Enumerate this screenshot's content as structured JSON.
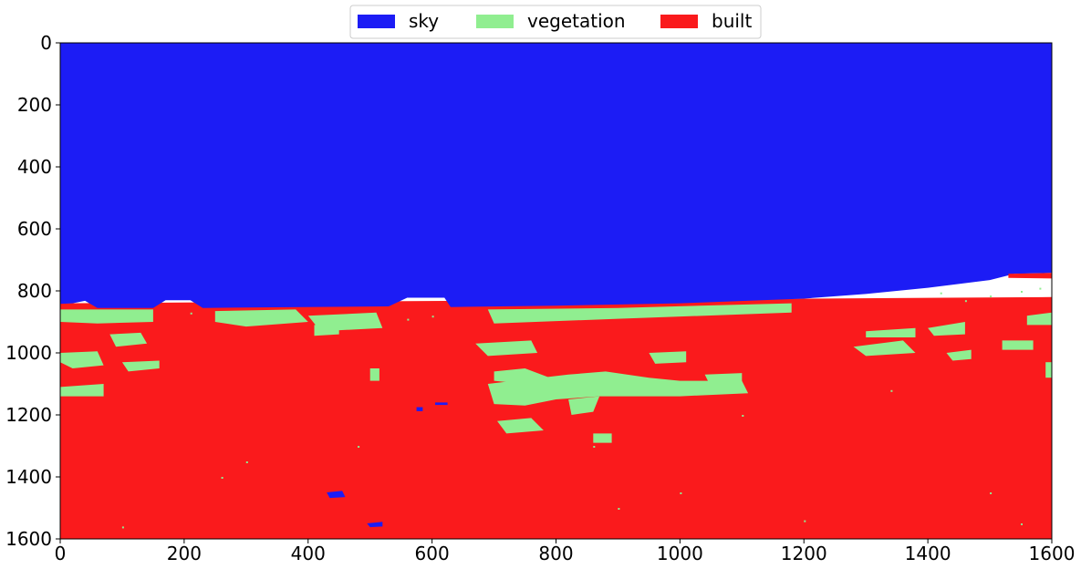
{
  "chart_data": {
    "type": "heatmap",
    "title": "",
    "xlabel": "",
    "ylabel": "",
    "xlim": [
      0,
      1600
    ],
    "ylim": [
      1600,
      0
    ],
    "y_inverted": true,
    "x_ticks": [
      0,
      200,
      400,
      600,
      800,
      1000,
      1200,
      1400,
      1600
    ],
    "y_ticks": [
      0,
      200,
      400,
      600,
      800,
      1000,
      1200,
      1400,
      1600
    ],
    "grid": false,
    "legend_position": "top-center",
    "legend_columns": 3,
    "classes": [
      {
        "name": "sky",
        "color": "#1c1cf5"
      },
      {
        "name": "vegetation",
        "color": "#90ee90"
      },
      {
        "name": "built",
        "color": "#fa1a1c"
      }
    ],
    "regions": [
      {
        "class": "built",
        "comment": "full-image background class below horizon",
        "points": [
          [
            0,
            840
          ],
          [
            1600,
            820
          ],
          [
            1600,
            1600
          ],
          [
            0,
            1600
          ]
        ]
      },
      {
        "class": "sky",
        "points": [
          [
            0,
            0
          ],
          [
            1600,
            0
          ],
          [
            1600,
            742
          ],
          [
            1540,
            745
          ],
          [
            1500,
            765
          ],
          [
            1400,
            790
          ],
          [
            1300,
            810
          ],
          [
            1200,
            825
          ],
          [
            1000,
            840
          ],
          [
            800,
            848
          ],
          [
            630,
            852
          ],
          [
            620,
            822
          ],
          [
            560,
            822
          ],
          [
            530,
            850
          ],
          [
            230,
            855
          ],
          [
            210,
            830
          ],
          [
            170,
            830
          ],
          [
            150,
            855
          ],
          [
            60,
            855
          ],
          [
            40,
            832
          ],
          [
            20,
            840
          ],
          [
            0,
            842
          ]
        ]
      },
      {
        "class": "built",
        "comment": "rooftop blob near horizon right",
        "points": [
          [
            1530,
            745
          ],
          [
            1600,
            742
          ],
          [
            1600,
            760
          ],
          [
            1530,
            758
          ]
        ]
      },
      {
        "class": "vegetation",
        "points": [
          [
            0,
            860
          ],
          [
            150,
            860
          ],
          [
            150,
            900
          ],
          [
            60,
            905
          ],
          [
            0,
            900
          ]
        ]
      },
      {
        "class": "vegetation",
        "points": [
          [
            80,
            940
          ],
          [
            130,
            935
          ],
          [
            140,
            970
          ],
          [
            90,
            980
          ]
        ]
      },
      {
        "class": "vegetation",
        "points": [
          [
            0,
            1000
          ],
          [
            60,
            995
          ],
          [
            70,
            1040
          ],
          [
            20,
            1050
          ],
          [
            0,
            1030
          ]
        ]
      },
      {
        "class": "vegetation",
        "points": [
          [
            0,
            1110
          ],
          [
            70,
            1100
          ],
          [
            70,
            1140
          ],
          [
            0,
            1140
          ]
        ]
      },
      {
        "class": "vegetation",
        "points": [
          [
            100,
            1030
          ],
          [
            160,
            1025
          ],
          [
            160,
            1050
          ],
          [
            110,
            1060
          ]
        ]
      },
      {
        "class": "vegetation",
        "points": [
          [
            250,
            865
          ],
          [
            380,
            860
          ],
          [
            400,
            900
          ],
          [
            300,
            915
          ],
          [
            250,
            900
          ]
        ]
      },
      {
        "class": "vegetation",
        "points": [
          [
            400,
            880
          ],
          [
            510,
            870
          ],
          [
            520,
            920
          ],
          [
            420,
            930
          ]
        ]
      },
      {
        "class": "vegetation",
        "points": [
          [
            410,
            910
          ],
          [
            450,
            905
          ],
          [
            450,
            940
          ],
          [
            410,
            945
          ]
        ]
      },
      {
        "class": "vegetation",
        "points": [
          [
            500,
            1050
          ],
          [
            515,
            1050
          ],
          [
            515,
            1090
          ],
          [
            500,
            1090
          ]
        ]
      },
      {
        "class": "vegetation",
        "points": [
          [
            690,
            860
          ],
          [
            900,
            855
          ],
          [
            1180,
            840
          ],
          [
            1180,
            870
          ],
          [
            900,
            890
          ],
          [
            700,
            905
          ]
        ]
      },
      {
        "class": "vegetation",
        "points": [
          [
            670,
            970
          ],
          [
            760,
            960
          ],
          [
            770,
            1000
          ],
          [
            690,
            1010
          ]
        ]
      },
      {
        "class": "vegetation",
        "points": [
          [
            700,
            1060
          ],
          [
            750,
            1050
          ],
          [
            790,
            1080
          ],
          [
            750,
            1100
          ],
          [
            700,
            1090
          ]
        ]
      },
      {
        "class": "vegetation",
        "points": [
          [
            690,
            1100
          ],
          [
            820,
            1070
          ],
          [
            880,
            1060
          ],
          [
            950,
            1080
          ],
          [
            1000,
            1090
          ],
          [
            1100,
            1090
          ],
          [
            1110,
            1130
          ],
          [
            1000,
            1140
          ],
          [
            870,
            1140
          ],
          [
            800,
            1150
          ],
          [
            750,
            1170
          ],
          [
            700,
            1165
          ]
        ]
      },
      {
        "class": "vegetation",
        "points": [
          [
            705,
            1220
          ],
          [
            760,
            1210
          ],
          [
            780,
            1250
          ],
          [
            720,
            1260
          ]
        ]
      },
      {
        "class": "vegetation",
        "points": [
          [
            820,
            1150
          ],
          [
            870,
            1140
          ],
          [
            860,
            1190
          ],
          [
            825,
            1200
          ]
        ]
      },
      {
        "class": "vegetation",
        "points": [
          [
            860,
            1260
          ],
          [
            890,
            1260
          ],
          [
            890,
            1290
          ],
          [
            860,
            1290
          ]
        ]
      },
      {
        "class": "vegetation",
        "points": [
          [
            950,
            1000
          ],
          [
            1010,
            995
          ],
          [
            1010,
            1030
          ],
          [
            960,
            1035
          ]
        ]
      },
      {
        "class": "vegetation",
        "points": [
          [
            1040,
            1070
          ],
          [
            1100,
            1065
          ],
          [
            1100,
            1110
          ],
          [
            1050,
            1110
          ]
        ]
      },
      {
        "class": "vegetation",
        "points": [
          [
            1280,
            980
          ],
          [
            1360,
            960
          ],
          [
            1380,
            1000
          ],
          [
            1300,
            1010
          ]
        ]
      },
      {
        "class": "vegetation",
        "points": [
          [
            1300,
            930
          ],
          [
            1380,
            920
          ],
          [
            1380,
            950
          ],
          [
            1300,
            950
          ]
        ]
      },
      {
        "class": "vegetation",
        "points": [
          [
            1400,
            920
          ],
          [
            1460,
            900
          ],
          [
            1460,
            940
          ],
          [
            1410,
            945
          ]
        ]
      },
      {
        "class": "vegetation",
        "points": [
          [
            1520,
            960
          ],
          [
            1570,
            960
          ],
          [
            1570,
            990
          ],
          [
            1520,
            990
          ]
        ]
      },
      {
        "class": "vegetation",
        "points": [
          [
            1560,
            880
          ],
          [
            1600,
            870
          ],
          [
            1600,
            910
          ],
          [
            1560,
            910
          ]
        ]
      },
      {
        "class": "vegetation",
        "points": [
          [
            1590,
            1030
          ],
          [
            1600,
            1030
          ],
          [
            1600,
            1080
          ],
          [
            1590,
            1080
          ]
        ]
      },
      {
        "class": "vegetation",
        "points": [
          [
            1430,
            1000
          ],
          [
            1470,
            990
          ],
          [
            1470,
            1020
          ],
          [
            1440,
            1025
          ]
        ]
      },
      {
        "class": "sky",
        "points": [
          [
            430,
            1450
          ],
          [
            455,
            1445
          ],
          [
            460,
            1465
          ],
          [
            435,
            1468
          ]
        ]
      },
      {
        "class": "sky",
        "points": [
          [
            575,
            1175
          ],
          [
            585,
            1175
          ],
          [
            585,
            1188
          ],
          [
            575,
            1188
          ]
        ]
      },
      {
        "class": "sky",
        "points": [
          [
            605,
            1160
          ],
          [
            625,
            1160
          ],
          [
            625,
            1168
          ],
          [
            605,
            1168
          ]
        ]
      },
      {
        "class": "sky",
        "points": [
          [
            495,
            1550
          ],
          [
            520,
            1545
          ],
          [
            520,
            1560
          ],
          [
            500,
            1562
          ]
        ]
      }
    ]
  }
}
